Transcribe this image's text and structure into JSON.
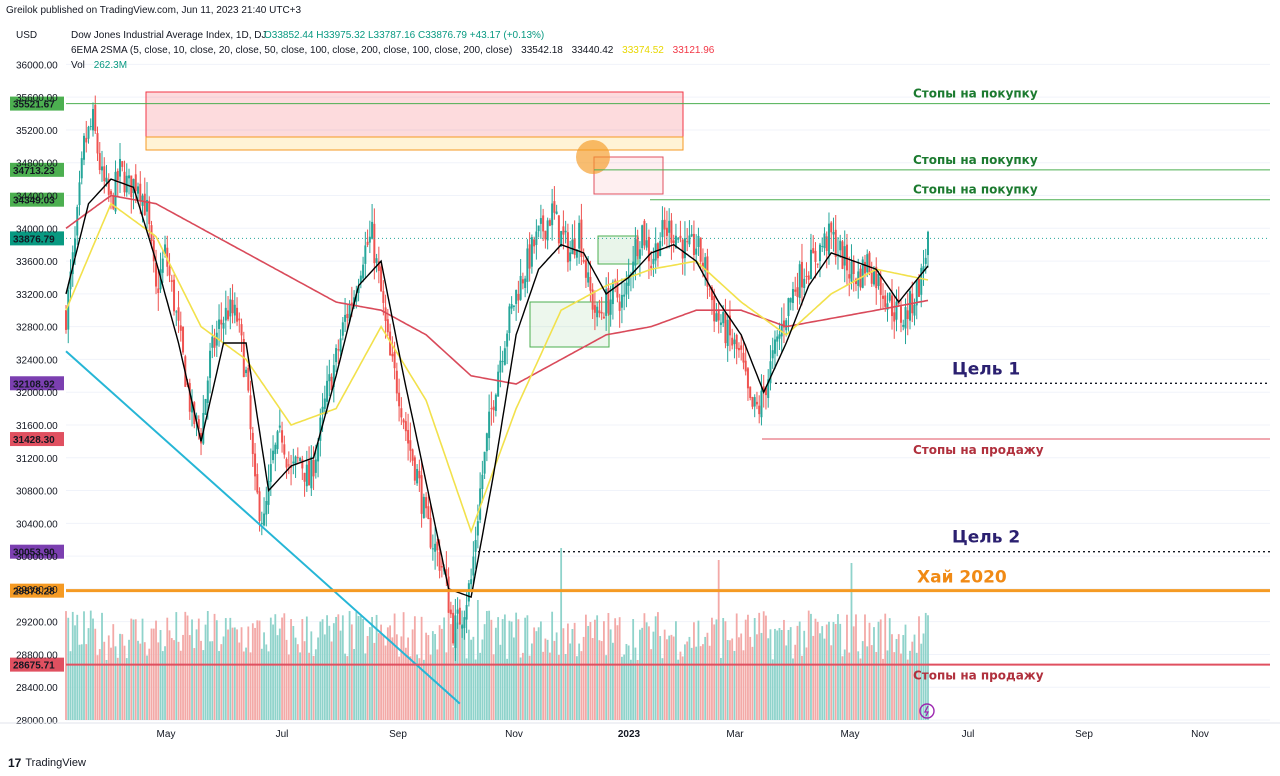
{
  "header": {
    "publisher_line": "Greilok published on TradingView.com, Jun 11, 2023 21:40 UTC+3"
  },
  "legend": {
    "currency": "USD",
    "symbol": "Dow Jones Industrial Average Index, 1D, DJ",
    "ohlc": "O33852.44  H33975.32  L33787.16  C33876.79  +43.17 (+0.13%)",
    "ma_name": "6EMA 2SMA (5, close, 10, close, 20, close, 50, close, 100, close, 200, close, 100, close, 200, close)",
    "ma_v1": "33542.18",
    "ma_v2": "33440.42",
    "ma_v3": "33374.52",
    "ma_v4": "33121.96",
    "vol_label": "Vol",
    "vol_value": "262.3M"
  },
  "footer": {
    "brand": "TradingView",
    "logo_glyph": "17"
  },
  "colors": {
    "up": "#26a69a",
    "down": "#ef5350",
    "ema_fast": "#000000",
    "ema_mid": "#f2e14c",
    "sma_slow": "#d94a5a",
    "trend": "#26b6d6",
    "green_line": "#4caf50",
    "red_line": "#e05060",
    "orange_line": "#f59a23",
    "purple_label": "#7b3fb0"
  },
  "chart_data": {
    "type": "candlestick",
    "y_range": [
      28000,
      36200
    ],
    "y_ticks": [
      "36000.00",
      "35600.00",
      "35200.00",
      "34800.00",
      "34400.00",
      "34000.00",
      "33600.00",
      "33200.00",
      "32800.00",
      "32400.00",
      "32000.00",
      "31600.00",
      "31200.00",
      "30800.00",
      "30400.00",
      "30000.00",
      "29600.00",
      "29200.00",
      "28800.00",
      "28400.00",
      "28000.00"
    ],
    "x_ticks": [
      "May",
      "Jul",
      "Sep",
      "Nov",
      "2023",
      "Mar",
      "May",
      "Jul",
      "Sep",
      "Nov"
    ],
    "close_path": [
      [
        0,
        32950
      ],
      [
        4,
        33800
      ],
      [
        8,
        35000
      ],
      [
        12,
        35300
      ],
      [
        16,
        34600
      ],
      [
        20,
        34300
      ],
      [
        24,
        34700
      ],
      [
        28,
        34500
      ],
      [
        32,
        34600
      ],
      [
        36,
        34200
      ],
      [
        40,
        33200
      ],
      [
        44,
        33700
      ],
      [
        48,
        33100
      ],
      [
        52,
        32400
      ],
      [
        56,
        31700
      ],
      [
        60,
        31500
      ],
      [
        64,
        32400
      ],
      [
        68,
        32800
      ],
      [
        72,
        33000
      ],
      [
        76,
        32900
      ],
      [
        80,
        32200
      ],
      [
        84,
        30800
      ],
      [
        88,
        30400
      ],
      [
        92,
        31200
      ],
      [
        96,
        31500
      ],
      [
        100,
        31000
      ],
      [
        104,
        31200
      ],
      [
        108,
        30900
      ],
      [
        112,
        31400
      ],
      [
        116,
        32000
      ],
      [
        120,
        32400
      ],
      [
        124,
        32900
      ],
      [
        128,
        33200
      ],
      [
        132,
        33700
      ],
      [
        136,
        33900
      ],
      [
        140,
        33200
      ],
      [
        144,
        32400
      ],
      [
        148,
        32000
      ],
      [
        152,
        31400
      ],
      [
        156,
        31000
      ],
      [
        160,
        30400
      ],
      [
        164,
        30100
      ],
      [
        168,
        29800
      ],
      [
        172,
        29100
      ],
      [
        176,
        29300
      ],
      [
        180,
        29700
      ],
      [
        184,
        30800
      ],
      [
        188,
        31600
      ],
      [
        192,
        32300
      ],
      [
        196,
        32800
      ],
      [
        200,
        33200
      ],
      [
        204,
        33500
      ],
      [
        208,
        33800
      ],
      [
        212,
        34000
      ],
      [
        216,
        34200
      ],
      [
        220,
        33900
      ],
      [
        224,
        33700
      ],
      [
        228,
        34000
      ],
      [
        232,
        33300
      ],
      [
        236,
        32900
      ],
      [
        240,
        33100
      ],
      [
        244,
        33200
      ],
      [
        248,
        33100
      ],
      [
        252,
        33700
      ],
      [
        256,
        34000
      ],
      [
        260,
        33600
      ],
      [
        264,
        33900
      ],
      [
        268,
        34000
      ],
      [
        272,
        33900
      ],
      [
        276,
        33700
      ],
      [
        280,
        33800
      ],
      [
        284,
        33500
      ],
      [
        288,
        33000
      ],
      [
        292,
        32800
      ],
      [
        296,
        32600
      ],
      [
        300,
        32400
      ],
      [
        304,
        31800
      ],
      [
        308,
        31800
      ],
      [
        312,
        32200
      ],
      [
        316,
        32600
      ],
      [
        320,
        33000
      ],
      [
        324,
        33300
      ],
      [
        328,
        33500
      ],
      [
        332,
        33600
      ],
      [
        336,
        33800
      ],
      [
        340,
        33900
      ],
      [
        344,
        33700
      ],
      [
        348,
        33500
      ],
      [
        352,
        33400
      ],
      [
        356,
        33600
      ],
      [
        360,
        33400
      ],
      [
        364,
        33200
      ],
      [
        368,
        33000
      ],
      [
        372,
        32900
      ],
      [
        376,
        33100
      ],
      [
        380,
        33400
      ],
      [
        383,
        33877
      ]
    ],
    "ema_fast_path": [
      [
        0,
        33200
      ],
      [
        10,
        34300
      ],
      [
        20,
        34600
      ],
      [
        30,
        34500
      ],
      [
        40,
        33600
      ],
      [
        50,
        32600
      ],
      [
        60,
        31400
      ],
      [
        70,
        32600
      ],
      [
        80,
        32600
      ],
      [
        90,
        30800
      ],
      [
        100,
        31100
      ],
      [
        110,
        31200
      ],
      [
        120,
        32200
      ],
      [
        130,
        33300
      ],
      [
        140,
        33600
      ],
      [
        150,
        32200
      ],
      [
        160,
        30900
      ],
      [
        170,
        29600
      ],
      [
        180,
        29500
      ],
      [
        190,
        31000
      ],
      [
        200,
        32700
      ],
      [
        210,
        33500
      ],
      [
        220,
        33800
      ],
      [
        230,
        33700
      ],
      [
        240,
        33200
      ],
      [
        250,
        33400
      ],
      [
        260,
        33700
      ],
      [
        270,
        33800
      ],
      [
        280,
        33600
      ],
      [
        290,
        33100
      ],
      [
        300,
        32700
      ],
      [
        310,
        32000
      ],
      [
        320,
        32600
      ],
      [
        330,
        33300
      ],
      [
        340,
        33700
      ],
      [
        350,
        33600
      ],
      [
        360,
        33500
      ],
      [
        370,
        33100
      ],
      [
        383,
        33540
      ]
    ],
    "ema_mid_path": [
      [
        0,
        33000
      ],
      [
        20,
        34300
      ],
      [
        40,
        33900
      ],
      [
        60,
        32800
      ],
      [
        80,
        32400
      ],
      [
        100,
        31600
      ],
      [
        120,
        31800
      ],
      [
        140,
        32800
      ],
      [
        160,
        31900
      ],
      [
        180,
        30300
      ],
      [
        200,
        31800
      ],
      [
        220,
        33000
      ],
      [
        240,
        33300
      ],
      [
        260,
        33500
      ],
      [
        280,
        33600
      ],
      [
        300,
        33100
      ],
      [
        320,
        32700
      ],
      [
        340,
        33200
      ],
      [
        360,
        33500
      ],
      [
        383,
        33370
      ]
    ],
    "sma_slow_path": [
      [
        0,
        34000
      ],
      [
        20,
        34400
      ],
      [
        40,
        34300
      ],
      [
        60,
        34000
      ],
      [
        80,
        33700
      ],
      [
        100,
        33400
      ],
      [
        120,
        33100
      ],
      [
        140,
        33000
      ],
      [
        160,
        32700
      ],
      [
        180,
        32200
      ],
      [
        200,
        32100
      ],
      [
        220,
        32400
      ],
      [
        240,
        32700
      ],
      [
        260,
        32800
      ],
      [
        280,
        33000
      ],
      [
        300,
        33000
      ],
      [
        320,
        32800
      ],
      [
        340,
        32900
      ],
      [
        360,
        33000
      ],
      [
        383,
        33120
      ]
    ],
    "trendline": [
      [
        0,
        32500
      ],
      [
        175,
        28200
      ]
    ],
    "levels": [
      {
        "price_label": "35521.67",
        "caption": "Стопы на покупку",
        "kind": "buy"
      },
      {
        "price_label": "34713.23",
        "caption": "Стопы на покупку",
        "kind": "buy"
      },
      {
        "price_label": "34349.03",
        "caption": "Стопы на покупку",
        "kind": "buy"
      },
      {
        "price_label": "33876.79",
        "caption": "",
        "kind": "last"
      },
      {
        "price_label": "32108.92",
        "caption": "Цель 1",
        "kind": "target"
      },
      {
        "price_label": "31428.30",
        "caption": "Стопы на продажу",
        "kind": "sell"
      },
      {
        "price_label": "30053.90",
        "caption": "Цель 2",
        "kind": "target"
      },
      {
        "price_label": "29578.28",
        "caption": "Хай 2020",
        "kind": "high2020"
      },
      {
        "price_label": "28675.71",
        "caption": "Стопы на продажу",
        "kind": "sell2"
      }
    ]
  }
}
